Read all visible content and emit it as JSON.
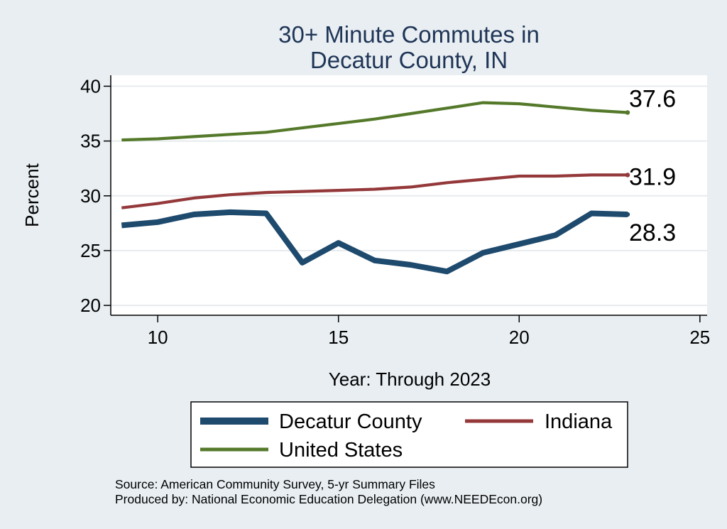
{
  "chart_data": {
    "type": "line",
    "title": [
      "30+ Minute Commutes in",
      "Decatur County, IN"
    ],
    "xlabel": "Year: Through 2023",
    "ylabel": "Percent",
    "xlim": [
      8.7,
      25.2
    ],
    "ylim": [
      19.1,
      41.0
    ],
    "x_ticks": [
      10,
      15,
      20,
      25
    ],
    "y_ticks": [
      20,
      25,
      30,
      35,
      40
    ],
    "grid": "horizontal",
    "x": [
      9,
      10,
      11,
      12,
      13,
      14,
      15,
      16,
      17,
      18,
      19,
      20,
      21,
      22,
      23
    ],
    "series": [
      {
        "name": "Decatur County",
        "color": "#1e4a6e",
        "line_weight": "thick",
        "values": [
          27.3,
          27.6,
          28.3,
          28.5,
          28.4,
          23.9,
          25.7,
          24.1,
          23.7,
          23.1,
          24.8,
          25.6,
          26.4,
          28.4,
          28.3
        ],
        "end_label": "28.3"
      },
      {
        "name": "Indiana",
        "color": "#94383a",
        "line_weight": "medium",
        "values": [
          28.9,
          29.3,
          29.8,
          30.1,
          30.3,
          30.4,
          30.5,
          30.6,
          30.8,
          31.2,
          31.5,
          31.8,
          31.8,
          31.9,
          31.9
        ],
        "end_label": "31.9"
      },
      {
        "name": "United States",
        "color": "#55792a",
        "line_weight": "medium",
        "values": [
          35.1,
          35.2,
          35.4,
          35.6,
          35.8,
          36.2,
          36.6,
          37.0,
          37.5,
          38.0,
          38.5,
          38.4,
          38.1,
          37.8,
          37.6
        ],
        "end_label": "37.6"
      }
    ],
    "legend": {
      "position": "bottom",
      "order": [
        "Decatur County",
        "Indiana",
        "United States"
      ]
    },
    "source": [
      "Source: American Community Survey, 5-yr Summary Files",
      "Produced by: National Economic Education Delegation (www.NEEDEcon.org)"
    ]
  }
}
